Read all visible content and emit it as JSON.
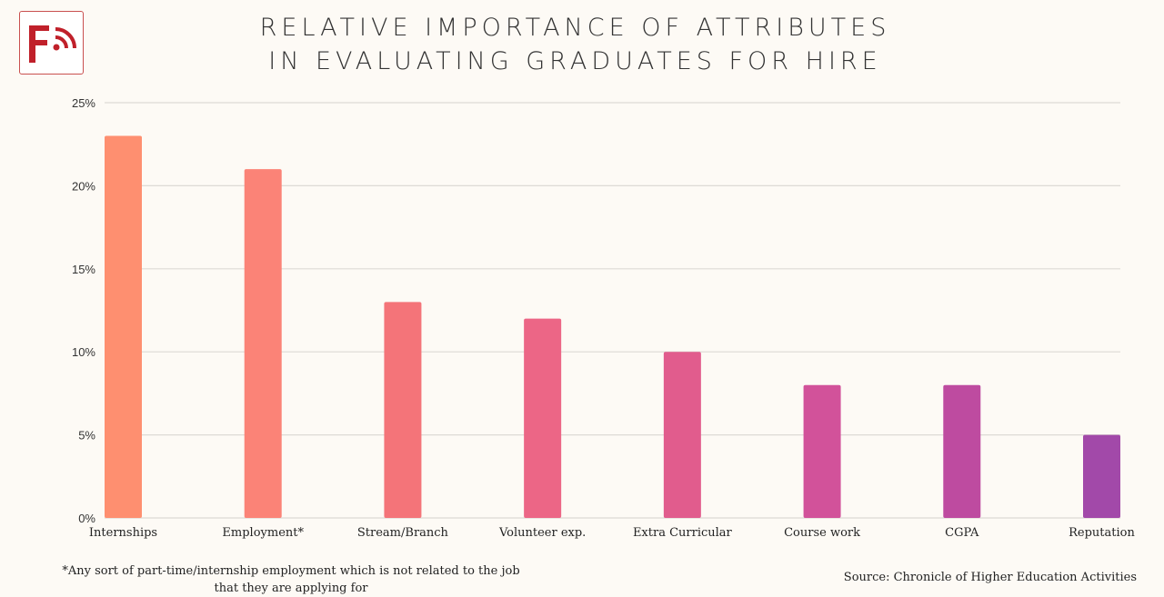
{
  "logo": {
    "text": "F",
    "icon": "signal-waves-icon",
    "color": "#c0202a"
  },
  "chart_data": {
    "type": "bar",
    "title": "RELATIVE IMPORTANCE OF ATTRIBUTES IN EVALUATING GRADUATES FOR HIRE",
    "title_lines": [
      "RELATIVE IMPORTANCE OF ATTRIBUTES",
      "IN EVALUATING GRADUATES FOR HIRE"
    ],
    "categories": [
      "Internships",
      "Employment*",
      "Stream/Branch",
      "Volunteer exp.",
      "Extra Curricular",
      "Course work",
      "CGPA",
      "Reputation"
    ],
    "values": [
      23,
      21,
      13,
      12,
      10,
      8,
      8,
      5
    ],
    "colors": [
      "#fe8f70",
      "#fb8377",
      "#f47479",
      "#ec6686",
      "#e15c8d",
      "#d2529a",
      "#be4ba0",
      "#a249a9"
    ],
    "ylim": [
      0,
      25
    ],
    "yticks": [
      0,
      5,
      10,
      15,
      20,
      25
    ],
    "ytick_labels": [
      "0%",
      "5%",
      "10%",
      "15%",
      "20%",
      "25%"
    ],
    "grid": true,
    "xlabel": "",
    "ylabel": ""
  },
  "footnote": "*Any sort of part-time/internship employment which is not related to the job that they are applying for",
  "source": "Source: Chronicle of Higher Education Activities"
}
